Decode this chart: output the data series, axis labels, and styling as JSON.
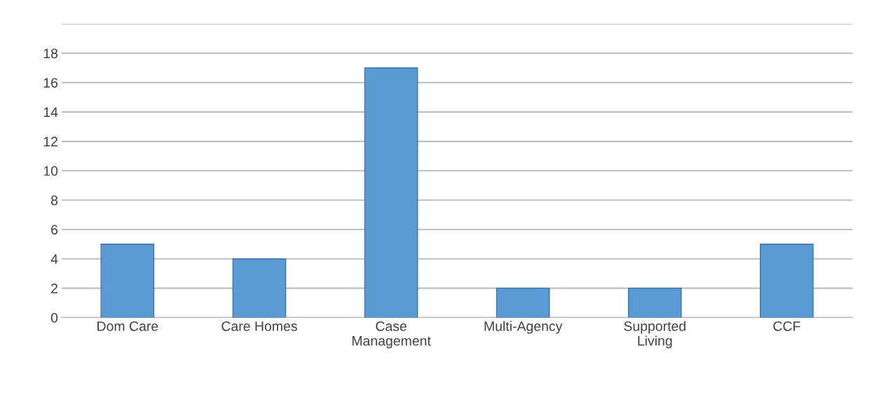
{
  "chart_data": {
    "type": "bar",
    "categories": [
      "Dom Care",
      "Care Homes",
      "Case\nManagement",
      "Multi-Agency",
      "Supported\nLiving",
      "CCF"
    ],
    "values": [
      5,
      4,
      17,
      2,
      2,
      5
    ],
    "color": "#5b9bd5",
    "ylim": [
      0,
      20
    ],
    "yticks": [
      0,
      2,
      4,
      6,
      8,
      10,
      12,
      14,
      16,
      18,
      {
        "value": 20,
        "label": null
      }
    ],
    "grid": "y"
  }
}
